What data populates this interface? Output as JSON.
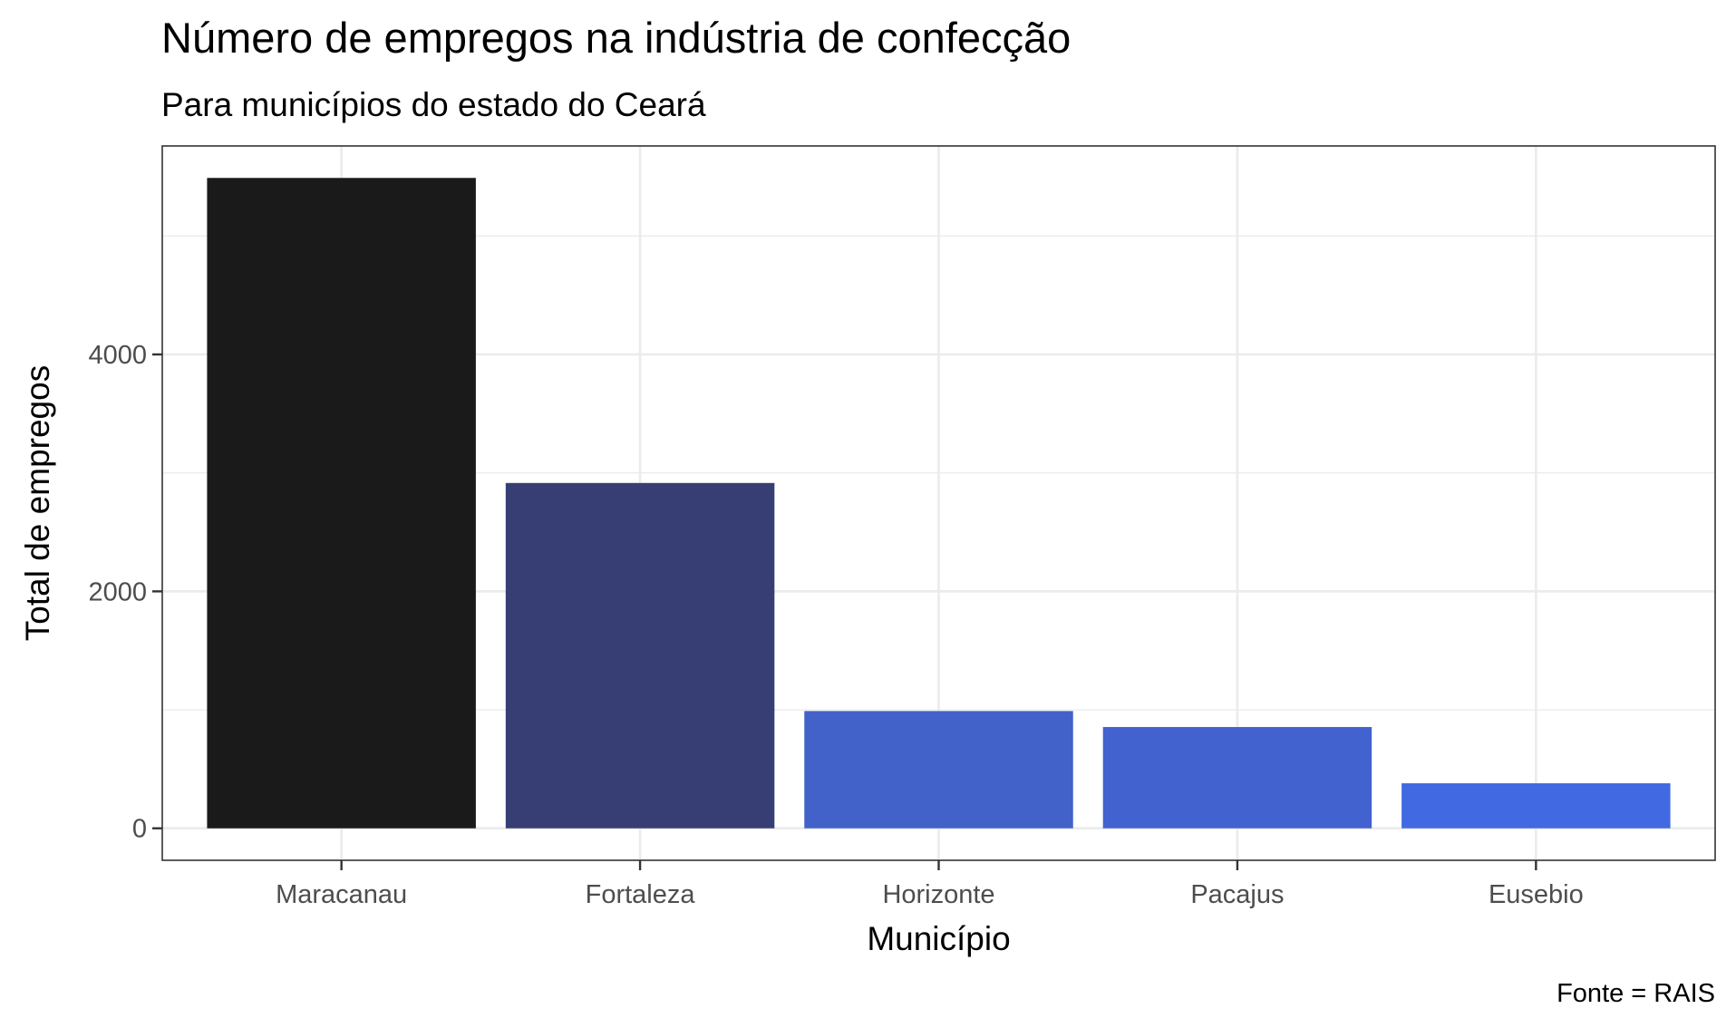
{
  "chart_data": {
    "type": "bar",
    "title": "Número de empregos na indústria de confecção",
    "subtitle": "Para municípios do estado do Ceará",
    "xlabel": "Município",
    "ylabel": "Total de empregos",
    "caption": "Fonte = RAIS",
    "categories": [
      "Maracanau",
      "Fortaleza",
      "Horizonte",
      "Pacajus",
      "Eusebio"
    ],
    "values": [
      5490,
      2915,
      990,
      855,
      380
    ],
    "colors": [
      "#1a1a1a",
      "#363e73",
      "#4262c9",
      "#4262cf",
      "#4169e1"
    ],
    "ylim": [
      -270,
      5760
    ],
    "yticks": [
      0,
      2000,
      4000
    ],
    "yticks_labels": [
      "0",
      "2000",
      "4000"
    ],
    "grid": true,
    "legend": "none"
  }
}
